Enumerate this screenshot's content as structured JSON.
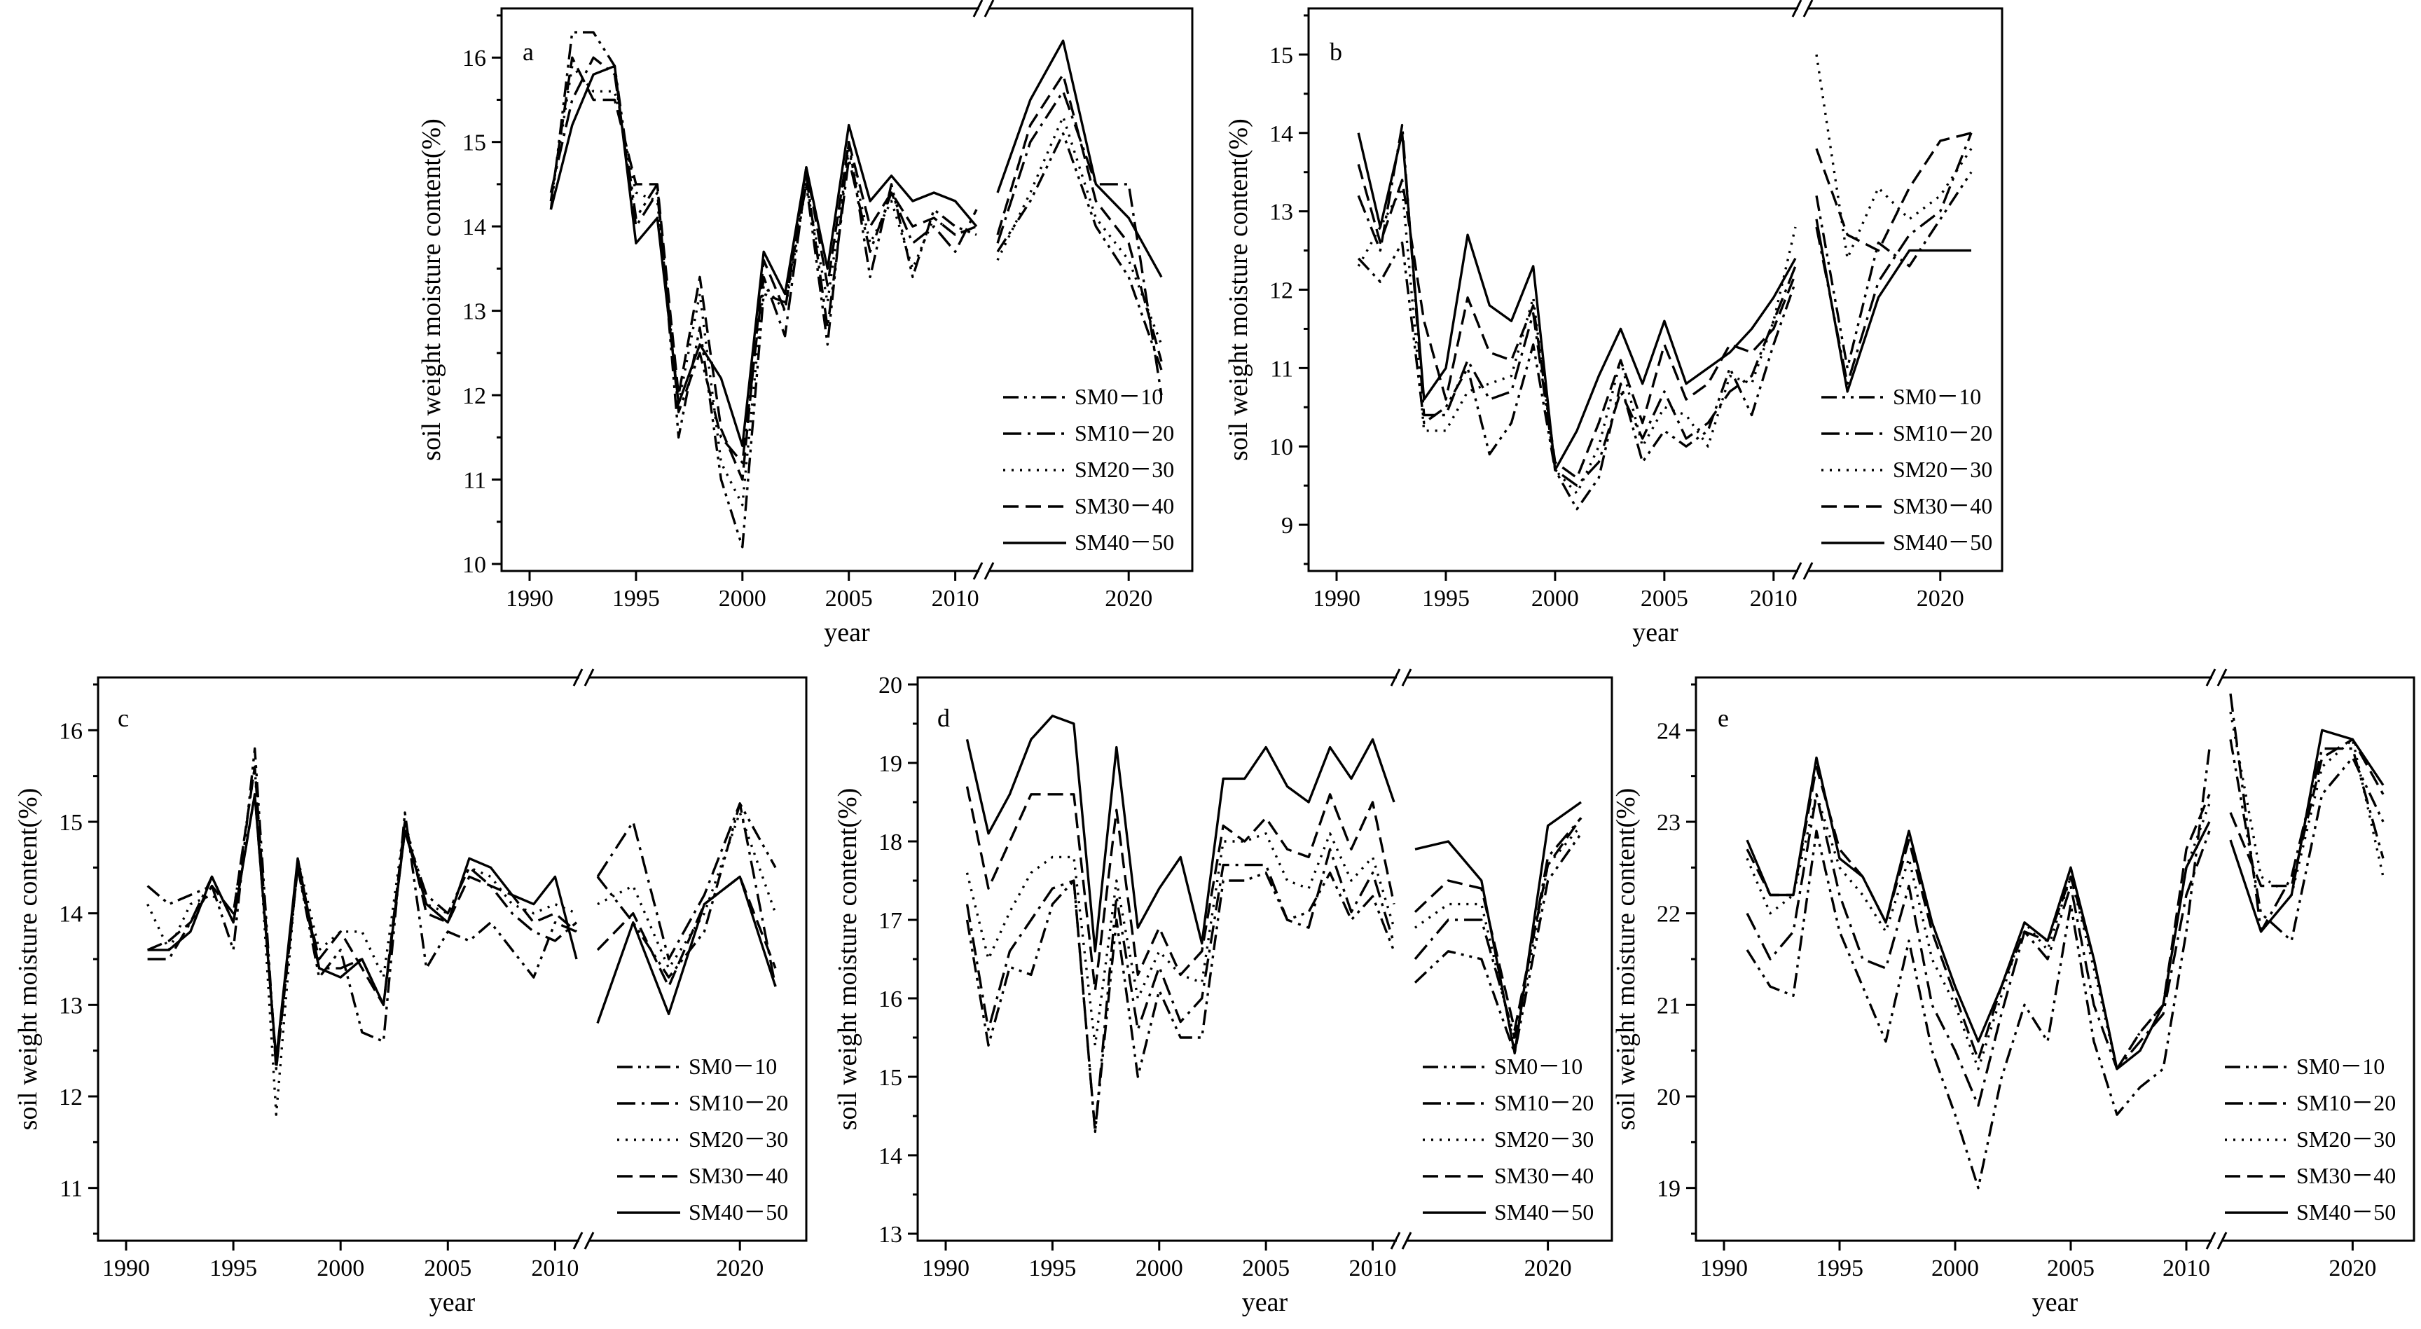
{
  "chart_data": [
    {
      "type": "line",
      "panel": "a",
      "xlabel": "year",
      "ylabel": "soil weight moisture content(%)",
      "ylim": [
        10,
        16.5
      ],
      "yticks": [
        10,
        11,
        12,
        13,
        14,
        15,
        16
      ],
      "xticks": [
        1990,
        1995,
        2000,
        2005,
        2010,
        2020
      ],
      "x": [
        1991,
        1992,
        1993,
        1994,
        1995,
        1996,
        1997,
        1998,
        1999,
        2000,
        2001,
        2002,
        2003,
        2004,
        2005,
        2006,
        2007,
        2008,
        2009,
        2010,
        2011,
        2012,
        2014,
        2016,
        2018,
        2020,
        2022
      ],
      "series": [
        {
          "name": "SM0－10",
          "style": "dashdotdot",
          "values": [
            14.2,
            16.3,
            16.3,
            15.9,
            14.1,
            14.5,
            11.5,
            12.8,
            11.0,
            10.2,
            13.2,
            13.1,
            14.5,
            12.6,
            15.0,
            13.4,
            14.5,
            13.4,
            14.2,
            14.0,
            13.9,
            13.7,
            14.3,
            15.1,
            14.0,
            13.4,
            12.3
          ]
        },
        {
          "name": "SM10－20",
          "style": "dashdot",
          "values": [
            14.4,
            15.5,
            16.0,
            15.8,
            14.0,
            14.4,
            11.8,
            12.5,
            11.5,
            11.2,
            13.4,
            12.7,
            14.6,
            12.8,
            14.8,
            13.7,
            14.4,
            13.8,
            14.0,
            13.7,
            14.2,
            13.8,
            15.0,
            15.6,
            14.5,
            14.5,
            12.0
          ]
        },
        {
          "name": "SM20－30",
          "style": "dotted",
          "values": [
            14.3,
            15.9,
            15.6,
            15.6,
            14.4,
            14.3,
            11.9,
            13.2,
            11.2,
            10.7,
            13.3,
            13.0,
            14.5,
            13.1,
            14.9,
            13.8,
            14.3,
            13.5,
            14.1,
            13.9,
            14.0,
            13.6,
            14.4,
            15.3,
            14.1,
            13.6,
            12.6
          ]
        },
        {
          "name": "SM30－40",
          "style": "dashed",
          "values": [
            14.3,
            16.0,
            15.5,
            15.5,
            14.5,
            14.5,
            12.0,
            13.4,
            11.6,
            11.0,
            13.6,
            13.0,
            14.7,
            13.3,
            15.0,
            14.0,
            14.4,
            14.0,
            14.1,
            13.9,
            14.0,
            13.9,
            15.2,
            15.8,
            14.3,
            13.8,
            12.4
          ]
        },
        {
          "name": "SM40－50",
          "style": "solid",
          "values": [
            14.2,
            15.2,
            15.8,
            15.9,
            13.8,
            14.1,
            11.9,
            12.6,
            12.2,
            11.4,
            13.7,
            13.2,
            14.7,
            13.5,
            15.2,
            14.3,
            14.6,
            14.3,
            14.4,
            14.3,
            14.0,
            14.4,
            15.5,
            16.2,
            14.5,
            14.1,
            13.4
          ]
        }
      ]
    },
    {
      "type": "line",
      "panel": "b",
      "xlabel": "year",
      "ylabel": "soil weight moisture content(%)",
      "ylim": [
        8.5,
        15.5
      ],
      "yticks": [
        9,
        10,
        11,
        12,
        13,
        14,
        15
      ],
      "xticks": [
        1990,
        1995,
        2000,
        2005,
        2010,
        2020
      ],
      "x": [
        1991,
        1992,
        1993,
        1994,
        1995,
        1996,
        1997,
        1998,
        1999,
        2000,
        2001,
        2002,
        2003,
        2004,
        2005,
        2006,
        2007,
        2008,
        2009,
        2010,
        2011,
        2012,
        2014,
        2016,
        2018,
        2020,
        2022
      ],
      "series": [
        {
          "name": "SM0－10",
          "style": "dashdotdot",
          "values": [
            12.4,
            12.1,
            12.6,
            10.3,
            10.5,
            11.0,
            9.9,
            10.3,
            11.3,
            9.7,
            9.2,
            9.6,
            10.8,
            9.8,
            10.2,
            10.0,
            10.2,
            11.0,
            10.4,
            11.3,
            12.1,
            13.2,
            11.0,
            12.6,
            12.3,
            12.9,
            13.5
          ]
        },
        {
          "name": "SM10－20",
          "style": "dashdot",
          "values": [
            13.2,
            12.5,
            14.1,
            10.4,
            10.4,
            11.1,
            10.6,
            10.7,
            11.7,
            9.7,
            9.5,
            9.8,
            10.7,
            10.1,
            10.7,
            10.1,
            10.3,
            10.7,
            10.9,
            11.6,
            12.3,
            12.8,
            10.8,
            12.1,
            12.7,
            13.0,
            14.0
          ]
        },
        {
          "name": "SM20－30",
          "style": "dotted",
          "values": [
            12.3,
            12.8,
            13.3,
            10.2,
            10.2,
            10.7,
            10.8,
            10.9,
            11.9,
            9.7,
            9.4,
            10.0,
            11.1,
            10.0,
            10.5,
            10.4,
            10.0,
            10.9,
            10.8,
            11.6,
            12.8,
            15.0,
            12.4,
            13.3,
            12.9,
            13.2,
            13.8
          ]
        },
        {
          "name": "SM30－40",
          "style": "dashed",
          "values": [
            13.6,
            12.6,
            13.4,
            11.6,
            10.6,
            11.9,
            11.2,
            11.1,
            11.8,
            9.8,
            9.6,
            10.3,
            11.1,
            10.3,
            11.3,
            10.6,
            10.8,
            11.3,
            11.2,
            11.5,
            12.2,
            13.8,
            12.7,
            12.5,
            13.3,
            13.9,
            14.0
          ]
        },
        {
          "name": "SM40－50",
          "style": "solid",
          "values": [
            14.0,
            12.8,
            14.0,
            10.6,
            11.0,
            12.7,
            11.8,
            11.6,
            12.3,
            9.7,
            10.2,
            10.9,
            11.5,
            10.8,
            11.6,
            10.8,
            11.0,
            11.2,
            11.5,
            11.9,
            12.4,
            12.9,
            10.7,
            11.9,
            12.5,
            12.5,
            12.5
          ]
        }
      ]
    },
    {
      "type": "line",
      "panel": "c",
      "xlabel": "year",
      "ylabel": "soil weight moisture content(%)",
      "ylim": [
        10.5,
        16.5
      ],
      "yticks": [
        11,
        12,
        13,
        14,
        15,
        16
      ],
      "xticks": [
        1990,
        1995,
        2000,
        2005,
        2010,
        2020
      ],
      "x": [
        1991,
        1992,
        1993,
        1994,
        1995,
        1996,
        1997,
        1998,
        1999,
        2000,
        2001,
        2002,
        2003,
        2004,
        2005,
        2006,
        2007,
        2008,
        2009,
        2010,
        2011,
        2012,
        2014,
        2016,
        2018,
        2020,
        2022
      ],
      "series": [
        {
          "name": "SM0－10",
          "style": "dashdotdot",
          "values": [
            14.3,
            14.1,
            14.2,
            14.3,
            13.6,
            15.8,
            12.3,
            14.5,
            13.3,
            13.6,
            12.7,
            12.6,
            15.1,
            13.4,
            13.8,
            13.7,
            13.9,
            13.6,
            13.3,
            13.9,
            13.8,
            14.4,
            13.9,
            13.3,
            13.8,
            15.2,
            14.5
          ]
        },
        {
          "name": "SM10－20",
          "style": "dashdot",
          "values": [
            13.5,
            13.5,
            13.9,
            14.4,
            13.9,
            15.3,
            12.4,
            14.5,
            13.4,
            13.4,
            13.5,
            13.0,
            14.9,
            14.2,
            14.0,
            14.5,
            14.3,
            14.0,
            13.8,
            13.7,
            13.9,
            14.4,
            15.0,
            13.5,
            14.2,
            15.2,
            13.2
          ]
        },
        {
          "name": "SM20－30",
          "style": "dotted",
          "values": [
            14.1,
            13.6,
            14.1,
            14.2,
            14.0,
            15.6,
            11.8,
            14.6,
            13.6,
            13.8,
            13.8,
            13.3,
            15.0,
            14.1,
            14.0,
            14.5,
            14.4,
            14.1,
            14.0,
            14.1,
            14.0,
            14.1,
            14.3,
            13.4,
            14.0,
            15.1,
            14.0
          ]
        },
        {
          "name": "SM30－40",
          "style": "dashed",
          "values": [
            13.6,
            13.7,
            13.9,
            14.3,
            14.0,
            15.6,
            12.3,
            14.5,
            13.5,
            13.8,
            13.4,
            13.0,
            15.0,
            14.0,
            13.9,
            14.4,
            14.3,
            14.2,
            13.9,
            14.0,
            13.8,
            13.6,
            14.0,
            13.2,
            14.1,
            14.4,
            13.4
          ]
        },
        {
          "name": "SM40－50",
          "style": "solid",
          "values": [
            13.6,
            13.6,
            13.8,
            14.4,
            13.9,
            15.3,
            12.4,
            14.6,
            13.4,
            13.3,
            13.5,
            13.0,
            14.9,
            14.1,
            13.9,
            14.6,
            14.5,
            14.2,
            14.1,
            14.4,
            13.5,
            12.8,
            13.9,
            12.9,
            14.1,
            14.4,
            13.2
          ]
        }
      ]
    },
    {
      "type": "line",
      "panel": "d",
      "xlabel": "year",
      "ylabel": "soil weight moisture content(%)",
      "ylim": [
        13,
        20
      ],
      "yticks": [
        13,
        14,
        15,
        16,
        17,
        18,
        19,
        20
      ],
      "xticks": [
        1990,
        1995,
        2000,
        2005,
        2010,
        2020
      ],
      "x": [
        1991,
        1992,
        1993,
        1994,
        1995,
        1996,
        1997,
        1998,
        1999,
        2000,
        2001,
        2002,
        2003,
        2004,
        2005,
        2006,
        2007,
        2008,
        2009,
        2010,
        2011,
        2012,
        2014,
        2016,
        2018,
        2020,
        2022
      ],
      "series": [
        {
          "name": "SM0－10",
          "style": "dashdotdot",
          "values": [
            17.0,
            15.4,
            16.4,
            16.3,
            17.2,
            17.5,
            14.3,
            17.0,
            15.0,
            16.1,
            15.5,
            15.5,
            17.5,
            17.5,
            17.6,
            17.0,
            17.1,
            17.6,
            17.0,
            17.3,
            16.6,
            16.2,
            16.6,
            16.5,
            15.3,
            17.5,
            18.1
          ]
        },
        {
          "name": "SM10－20",
          "style": "dashdot",
          "values": [
            17.2,
            15.6,
            16.6,
            17.0,
            17.4,
            17.5,
            14.3,
            17.3,
            15.6,
            16.4,
            15.7,
            16.0,
            17.7,
            17.7,
            17.7,
            17.0,
            16.9,
            17.9,
            17.1,
            17.6,
            16.7,
            16.5,
            17.0,
            17.0,
            15.5,
            17.8,
            18.3
          ]
        },
        {
          "name": "SM20－30",
          "style": "dotted",
          "values": [
            17.6,
            16.5,
            17.1,
            17.6,
            17.8,
            17.8,
            15.4,
            17.5,
            16.0,
            16.6,
            16.3,
            16.2,
            18.0,
            18.0,
            18.1,
            17.5,
            17.4,
            18.1,
            17.5,
            17.8,
            16.9,
            16.9,
            17.2,
            17.2,
            15.4,
            17.7,
            18.2
          ]
        },
        {
          "name": "SM30－40",
          "style": "dashed",
          "values": [
            18.7,
            17.4,
            18.0,
            18.6,
            18.6,
            18.6,
            16.1,
            18.4,
            16.3,
            16.9,
            16.3,
            16.6,
            18.2,
            18.0,
            18.3,
            17.9,
            17.8,
            18.6,
            17.9,
            18.5,
            17.2,
            17.1,
            17.5,
            17.4,
            15.6,
            17.7,
            18.3
          ]
        },
        {
          "name": "SM40－50",
          "style": "solid",
          "values": [
            19.3,
            18.1,
            18.6,
            19.3,
            19.6,
            19.5,
            16.6,
            19.2,
            16.9,
            17.4,
            17.8,
            16.7,
            18.8,
            18.8,
            19.2,
            18.7,
            18.5,
            19.2,
            18.8,
            19.3,
            18.5,
            17.9,
            18.0,
            17.5,
            15.3,
            18.2,
            18.5
          ]
        }
      ]
    },
    {
      "type": "line",
      "panel": "e",
      "xlabel": "year",
      "ylabel": "soil weight moisture content(%)",
      "ylim": [
        18.5,
        24.5
      ],
      "yticks": [
        19,
        20,
        21,
        22,
        23,
        24
      ],
      "xticks": [
        1990,
        1995,
        2000,
        2005,
        2010,
        2020
      ],
      "x": [
        1991,
        1992,
        1993,
        1994,
        1995,
        1996,
        1997,
        1998,
        1999,
        2000,
        2001,
        2002,
        2003,
        2004,
        2005,
        2006,
        2007,
        2008,
        2009,
        2010,
        2011,
        2012,
        2014,
        2016,
        2018,
        2020,
        2022
      ],
      "series": [
        {
          "name": "SM0－10",
          "style": "dashdotdot",
          "values": [
            21.6,
            21.2,
            21.1,
            22.9,
            21.8,
            21.2,
            20.6,
            21.7,
            20.5,
            19.8,
            19.0,
            20.2,
            21.0,
            20.6,
            22.1,
            20.6,
            19.8,
            20.1,
            20.3,
            21.8,
            23.8,
            23.9,
            22.0,
            21.7,
            23.3,
            23.7,
            23.0
          ]
        },
        {
          "name": "SM10－20",
          "style": "dashdot",
          "values": [
            22.0,
            21.5,
            21.8,
            23.3,
            22.2,
            21.5,
            21.4,
            22.3,
            21.0,
            20.5,
            19.9,
            20.9,
            21.8,
            21.5,
            22.3,
            21.0,
            20.3,
            20.6,
            20.9,
            22.2,
            22.9,
            24.4,
            21.8,
            22.4,
            23.8,
            23.8,
            22.6
          ]
        },
        {
          "name": "SM20－30",
          "style": "dotted",
          "values": [
            22.6,
            22.0,
            22.2,
            23.3,
            22.5,
            22.2,
            21.8,
            22.6,
            21.5,
            21.0,
            20.3,
            21.1,
            21.9,
            21.6,
            22.4,
            21.4,
            20.3,
            20.7,
            21.0,
            22.5,
            23.2,
            24.2,
            22.4,
            22.2,
            23.6,
            23.9,
            22.4
          ]
        },
        {
          "name": "SM30－40",
          "style": "dashed",
          "values": [
            22.7,
            22.2,
            22.2,
            23.6,
            22.7,
            22.4,
            21.9,
            22.8,
            21.8,
            21.1,
            20.4,
            21.2,
            21.8,
            21.7,
            22.4,
            21.5,
            20.3,
            20.7,
            21.0,
            22.7,
            23.3,
            23.1,
            22.3,
            22.3,
            23.7,
            23.9,
            23.3
          ]
        },
        {
          "name": "SM40－50",
          "style": "solid",
          "values": [
            22.8,
            22.2,
            22.2,
            23.7,
            22.6,
            22.4,
            21.9,
            22.9,
            21.9,
            21.2,
            20.6,
            21.2,
            21.9,
            21.7,
            22.5,
            21.5,
            20.3,
            20.5,
            21.0,
            22.5,
            23.0,
            22.8,
            21.8,
            22.2,
            24.0,
            23.9,
            23.4
          ]
        }
      ]
    }
  ]
}
